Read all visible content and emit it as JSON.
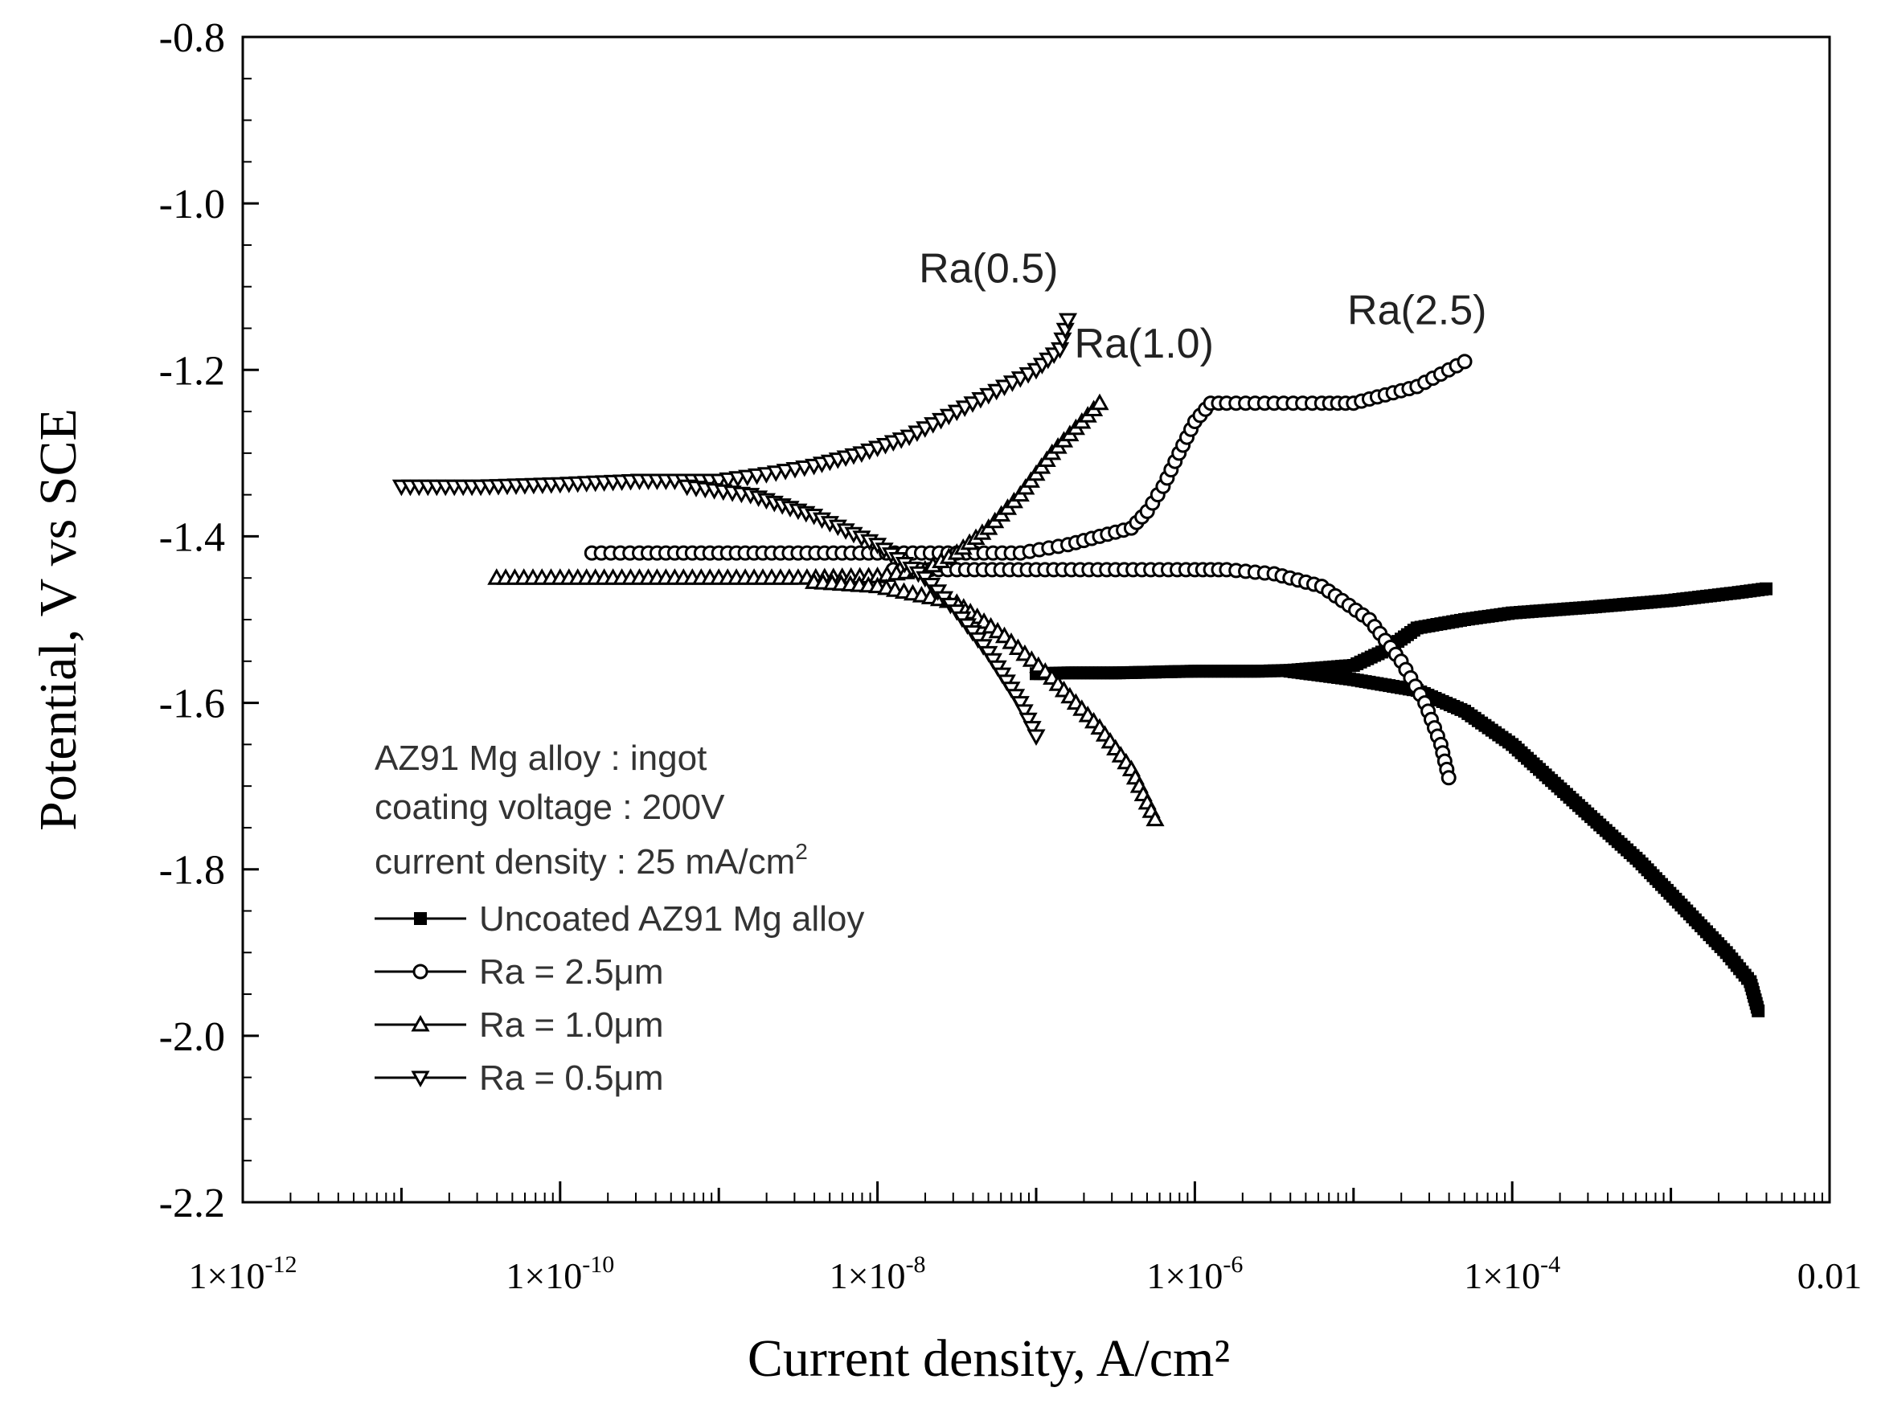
{
  "chart_data": {
    "type": "line",
    "xscale": "log",
    "xlim_exponent": [
      -12,
      -2
    ],
    "ylim": [
      -2.2,
      -0.8
    ],
    "xlabel": "Current density, A/cm²",
    "ylabel": "Potential, V vs SCE",
    "y_ticks": [
      "-0.8",
      "-1.0",
      "-1.2",
      "-1.4",
      "-1.6",
      "-1.8",
      "-2.0",
      "-2.2"
    ],
    "y_tick_values": [
      -0.8,
      -1.0,
      -1.2,
      -1.4,
      -1.6,
      -1.8,
      -2.0,
      -2.2
    ],
    "x_ticks": [
      {
        "value_exp": -12,
        "base": "1×10",
        "exp": "-12"
      },
      {
        "value_exp": -10,
        "base": "1×10",
        "exp": "-10"
      },
      {
        "value_exp": -8,
        "base": "1×10",
        "exp": "-8"
      },
      {
        "value_exp": -6,
        "base": "1×10",
        "exp": "-6"
      },
      {
        "value_exp": -4,
        "base": "1×10",
        "exp": "-4"
      },
      {
        "value_exp": -2,
        "base": "0.01",
        "exp": ""
      }
    ],
    "annotations": [
      {
        "text": "Ra(0.5)",
        "x_exp": -7.3,
        "y": -1.095
      },
      {
        "text": "Ra(1.0)",
        "x_exp": -6.32,
        "y": -1.185
      },
      {
        "text": "Ra(2.5)",
        "x_exp": -4.6,
        "y": -1.145
      }
    ],
    "info_lines": [
      {
        "text": "AZ91 Mg alloy : ingot",
        "sup": ""
      },
      {
        "text": "coating voltage : 200V",
        "sup": ""
      },
      {
        "text": "current density : 25 mA/cm",
        "sup": "2"
      }
    ],
    "series": [
      {
        "name": "Uncoated AZ91 Mg alloy",
        "marker": "square-filled",
        "anodic": [
          [
            -7.0,
            -1.565
          ],
          [
            -6.8,
            -1.564
          ],
          [
            -6.5,
            -1.564
          ],
          [
            -6.0,
            -1.562
          ],
          [
            -5.6,
            -1.562
          ],
          [
            -5.4,
            -1.561
          ],
          [
            -5.0,
            -1.555
          ],
          [
            -4.8,
            -1.537
          ],
          [
            -4.6,
            -1.51
          ],
          [
            -4.3,
            -1.5
          ],
          [
            -4.0,
            -1.492
          ],
          [
            -3.5,
            -1.485
          ],
          [
            -3.0,
            -1.477
          ],
          [
            -2.6,
            -1.468
          ],
          [
            -2.4,
            -1.463
          ]
        ],
        "cathodic": [
          [
            -5.4,
            -1.562
          ],
          [
            -5.0,
            -1.572
          ],
          [
            -4.6,
            -1.585
          ],
          [
            -4.3,
            -1.61
          ],
          [
            -4.0,
            -1.65
          ],
          [
            -3.6,
            -1.72
          ],
          [
            -3.2,
            -1.79
          ],
          [
            -2.9,
            -1.85
          ],
          [
            -2.65,
            -1.9
          ],
          [
            -2.5,
            -1.935
          ],
          [
            -2.45,
            -1.97
          ]
        ]
      },
      {
        "name": "Ra = 2.5μm",
        "marker": "circle-open",
        "anodic": [
          [
            -9.8,
            -1.42
          ],
          [
            -9.5,
            -1.42
          ],
          [
            -9.0,
            -1.42
          ],
          [
            -8.5,
            -1.42
          ],
          [
            -8.0,
            -1.42
          ],
          [
            -7.5,
            -1.42
          ],
          [
            -7.1,
            -1.42
          ],
          [
            -6.8,
            -1.41
          ],
          [
            -6.6,
            -1.4
          ],
          [
            -6.4,
            -1.39
          ],
          [
            -6.3,
            -1.37
          ],
          [
            -6.2,
            -1.34
          ],
          [
            -6.1,
            -1.3
          ],
          [
            -6.0,
            -1.262
          ],
          [
            -5.9,
            -1.24
          ],
          [
            -5.8,
            -1.24
          ],
          [
            -5.5,
            -1.24
          ],
          [
            -5.2,
            -1.24
          ],
          [
            -5.0,
            -1.24
          ],
          [
            -4.8,
            -1.23
          ],
          [
            -4.6,
            -1.22
          ],
          [
            -4.45,
            -1.205
          ],
          [
            -4.3,
            -1.19
          ]
        ],
        "cathodic": [
          [
            -7.9,
            -1.44
          ],
          [
            -7.5,
            -1.44
          ],
          [
            -7.0,
            -1.44
          ],
          [
            -6.5,
            -1.44
          ],
          [
            -6.0,
            -1.44
          ],
          [
            -5.8,
            -1.44
          ],
          [
            -5.5,
            -1.445
          ],
          [
            -5.2,
            -1.46
          ],
          [
            -4.9,
            -1.5
          ],
          [
            -4.7,
            -1.55
          ],
          [
            -4.55,
            -1.6
          ],
          [
            -4.45,
            -1.65
          ],
          [
            -4.4,
            -1.69
          ]
        ]
      },
      {
        "name": "Ra = 1.0μm",
        "marker": "triangle-up-open",
        "anodic": [
          [
            -10.4,
            -1.45
          ],
          [
            -10.0,
            -1.45
          ],
          [
            -9.5,
            -1.45
          ],
          [
            -9.0,
            -1.45
          ],
          [
            -8.5,
            -1.45
          ],
          [
            -8.0,
            -1.448
          ],
          [
            -7.7,
            -1.44
          ],
          [
            -7.5,
            -1.42
          ],
          [
            -7.3,
            -1.39
          ],
          [
            -7.1,
            -1.35
          ],
          [
            -6.9,
            -1.3
          ],
          [
            -6.75,
            -1.27
          ],
          [
            -6.6,
            -1.24
          ]
        ],
        "cathodic": [
          [
            -8.4,
            -1.455
          ],
          [
            -8.0,
            -1.46
          ],
          [
            -7.5,
            -1.48
          ],
          [
            -7.2,
            -1.52
          ],
          [
            -6.9,
            -1.57
          ],
          [
            -6.6,
            -1.63
          ],
          [
            -6.4,
            -1.68
          ],
          [
            -6.25,
            -1.74
          ]
        ]
      },
      {
        "name": "Ra = 0.5μm",
        "marker": "triangle-down-open",
        "anodic": [
          [
            -11.0,
            -1.34
          ],
          [
            -10.5,
            -1.34
          ],
          [
            -10.0,
            -1.337
          ],
          [
            -9.5,
            -1.333
          ],
          [
            -9.0,
            -1.333
          ],
          [
            -8.7,
            -1.325
          ],
          [
            -8.4,
            -1.315
          ],
          [
            -8.1,
            -1.3
          ],
          [
            -7.8,
            -1.28
          ],
          [
            -7.5,
            -1.25
          ],
          [
            -7.2,
            -1.22
          ],
          [
            -7.0,
            -1.2
          ],
          [
            -6.85,
            -1.175
          ],
          [
            -6.8,
            -1.14
          ]
        ],
        "cathodic": [
          [
            -9.2,
            -1.34
          ],
          [
            -8.8,
            -1.35
          ],
          [
            -8.4,
            -1.375
          ],
          [
            -8.0,
            -1.41
          ],
          [
            -7.7,
            -1.45
          ],
          [
            -7.5,
            -1.49
          ],
          [
            -7.3,
            -1.54
          ],
          [
            -7.1,
            -1.6
          ],
          [
            -7.0,
            -1.64
          ]
        ]
      }
    ]
  }
}
